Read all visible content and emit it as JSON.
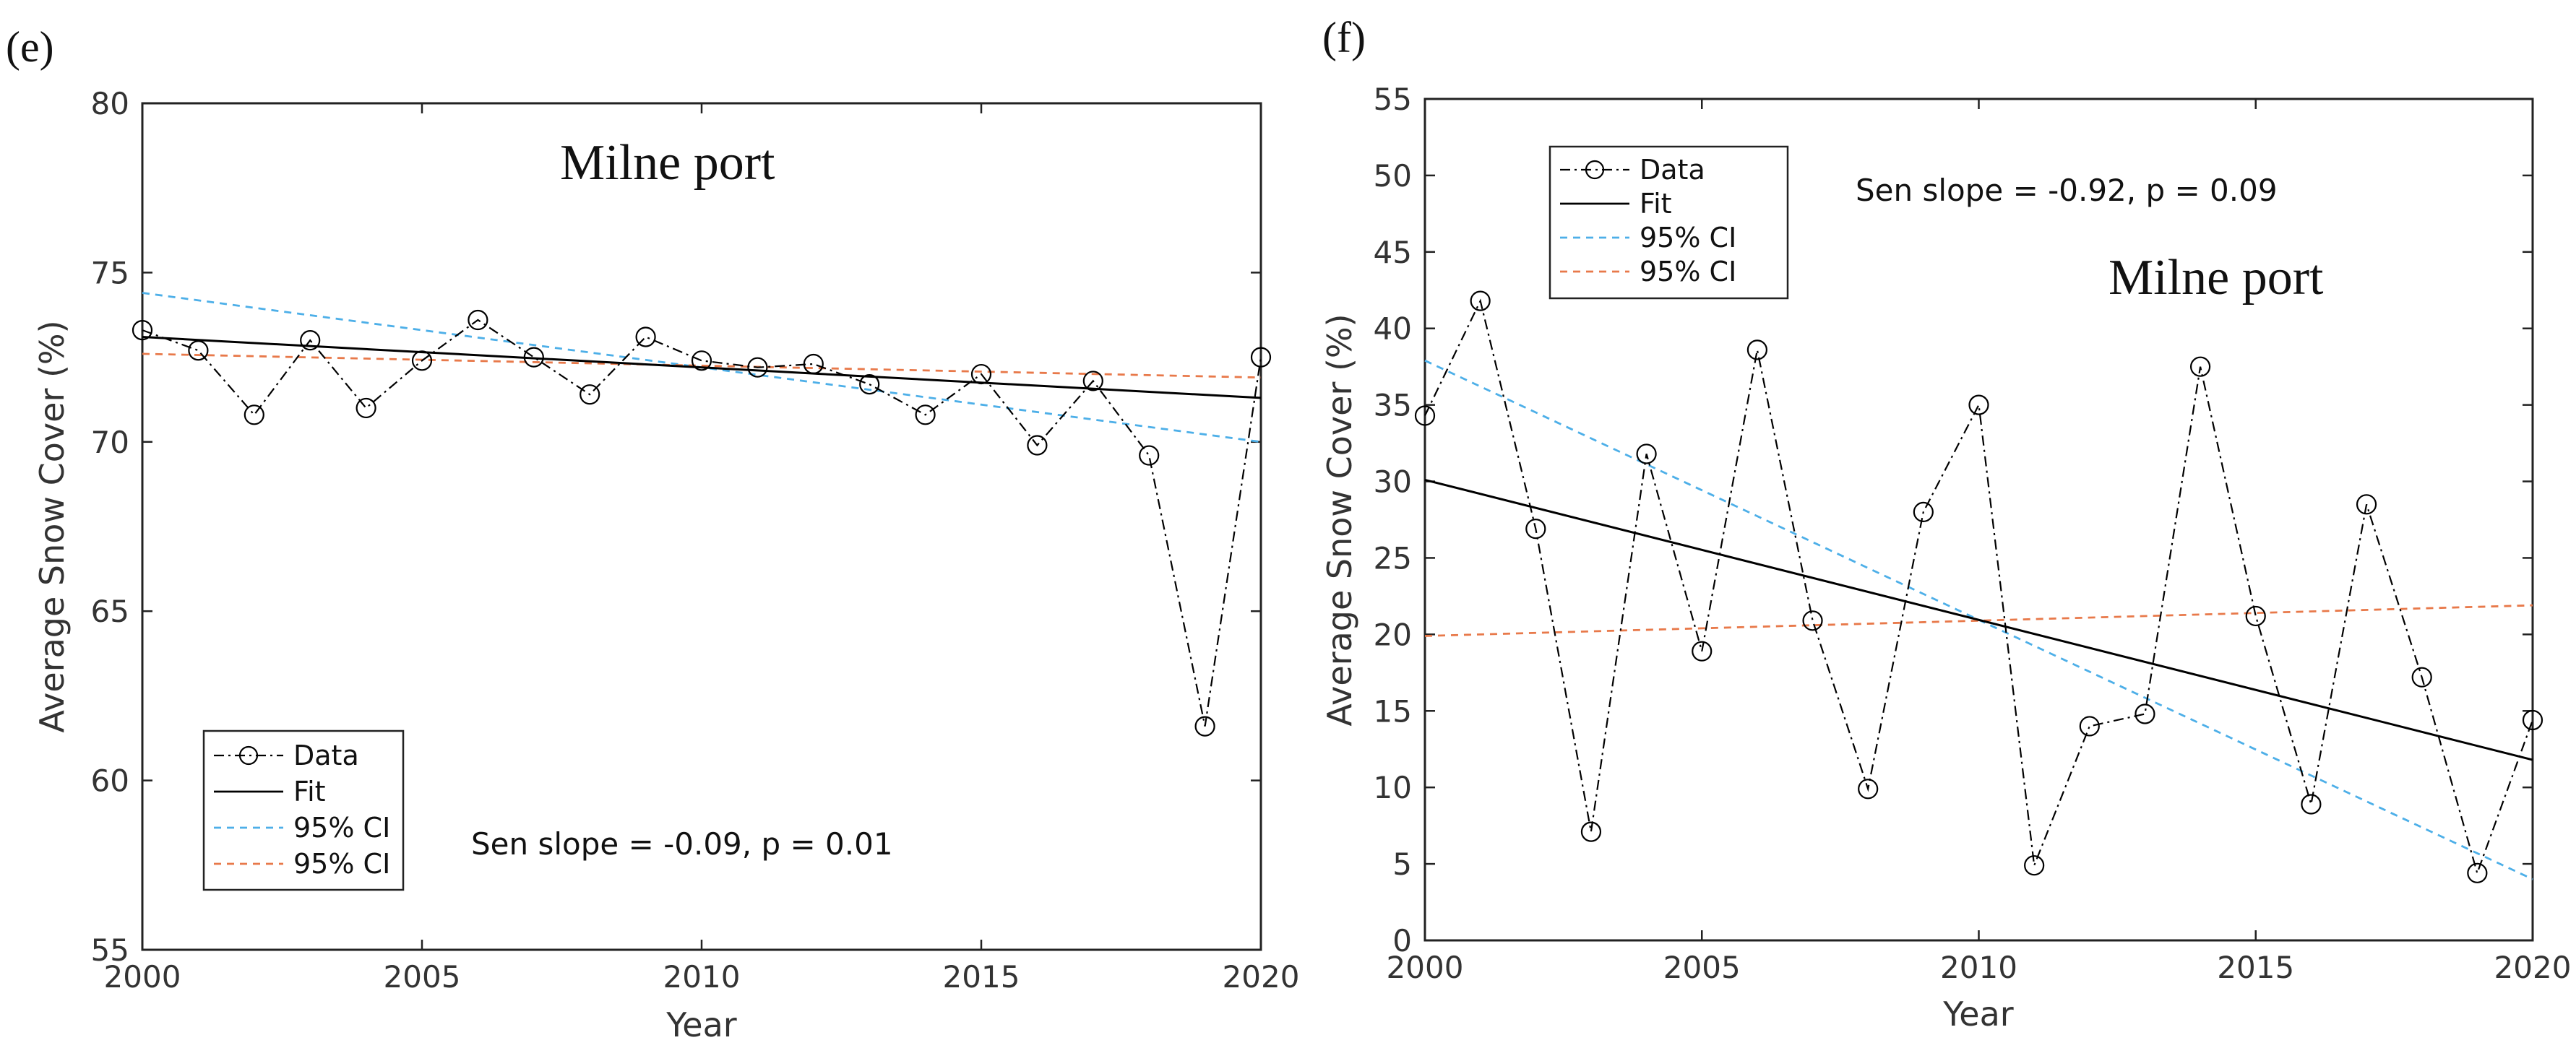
{
  "chart_data": [
    {
      "panel_label": "(e)",
      "type": "line",
      "station": "Milne port",
      "xlabel": "Year",
      "ylabel": "Average Snow Cover (%)",
      "xlim": [
        2000,
        2020
      ],
      "ylim": [
        55,
        80
      ],
      "xticks": [
        2000,
        2005,
        2010,
        2015,
        2020
      ],
      "yticks": [
        55,
        60,
        65,
        70,
        75,
        80
      ],
      "stat_text": "Sen slope = -0.09, p = 0.01",
      "legend_placement": "bottom-left",
      "series": [
        {
          "name": "Data",
          "style": "dash-dot with circle markers",
          "color": "#000000",
          "x": [
            2000,
            2001,
            2002,
            2003,
            2004,
            2005,
            2006,
            2007,
            2008,
            2009,
            2010,
            2011,
            2012,
            2013,
            2014,
            2015,
            2016,
            2017,
            2018,
            2019,
            2020
          ],
          "values": [
            73.3,
            72.7,
            70.8,
            73.0,
            71.0,
            72.4,
            73.6,
            72.5,
            71.4,
            73.1,
            72.4,
            72.2,
            72.3,
            71.7,
            70.8,
            72.0,
            69.9,
            71.8,
            69.6,
            61.6,
            72.5
          ]
        },
        {
          "name": "Fit",
          "style": "solid",
          "color": "#000000",
          "x": [
            2000,
            2020
          ],
          "values": [
            73.1,
            71.3
          ]
        },
        {
          "name": "95% CI",
          "style": "dashed",
          "color": "#4DAFE8",
          "x": [
            2000,
            2020
          ],
          "values": [
            74.4,
            70.0
          ]
        },
        {
          "name": "95% CI",
          "style": "dashed",
          "color": "#E8794A",
          "x": [
            2000,
            2020
          ],
          "values": [
            72.6,
            71.9
          ]
        }
      ]
    },
    {
      "panel_label": "(f)",
      "type": "line",
      "station": "Milne port",
      "xlabel": "Year",
      "ylabel": "Average Snow Cover (%)",
      "xlim": [
        2000,
        2020
      ],
      "ylim": [
        0,
        55
      ],
      "xticks": [
        2000,
        2005,
        2010,
        2015,
        2020
      ],
      "yticks": [
        0,
        5,
        10,
        15,
        20,
        25,
        30,
        35,
        40,
        45,
        50,
        55
      ],
      "stat_text": "Sen slope = -0.92, p = 0.09",
      "legend_placement": "top-left",
      "series": [
        {
          "name": "Data",
          "style": "dash-dot with circle markers",
          "color": "#000000",
          "x": [
            2000,
            2001,
            2002,
            2003,
            2004,
            2005,
            2006,
            2007,
            2008,
            2009,
            2010,
            2011,
            2012,
            2013,
            2014,
            2015,
            2016,
            2017,
            2018,
            2019,
            2020
          ],
          "values": [
            34.3,
            41.8,
            26.9,
            7.1,
            31.8,
            18.9,
            38.6,
            20.9,
            9.9,
            28.0,
            35.0,
            4.9,
            14.0,
            14.8,
            37.5,
            21.2,
            8.9,
            28.5,
            17.2,
            4.4,
            14.4
          ]
        },
        {
          "name": "Fit",
          "style": "solid",
          "color": "#000000",
          "x": [
            2000,
            2020
          ],
          "values": [
            30.1,
            11.8
          ]
        },
        {
          "name": "95% CI",
          "style": "dashed",
          "color": "#4DAFE8",
          "x": [
            2000,
            2020
          ],
          "values": [
            37.9,
            4.0
          ]
        },
        {
          "name": "95% CI",
          "style": "dashed",
          "color": "#E8794A",
          "x": [
            2000,
            2020
          ],
          "values": [
            19.9,
            21.9
          ]
        }
      ]
    }
  ]
}
